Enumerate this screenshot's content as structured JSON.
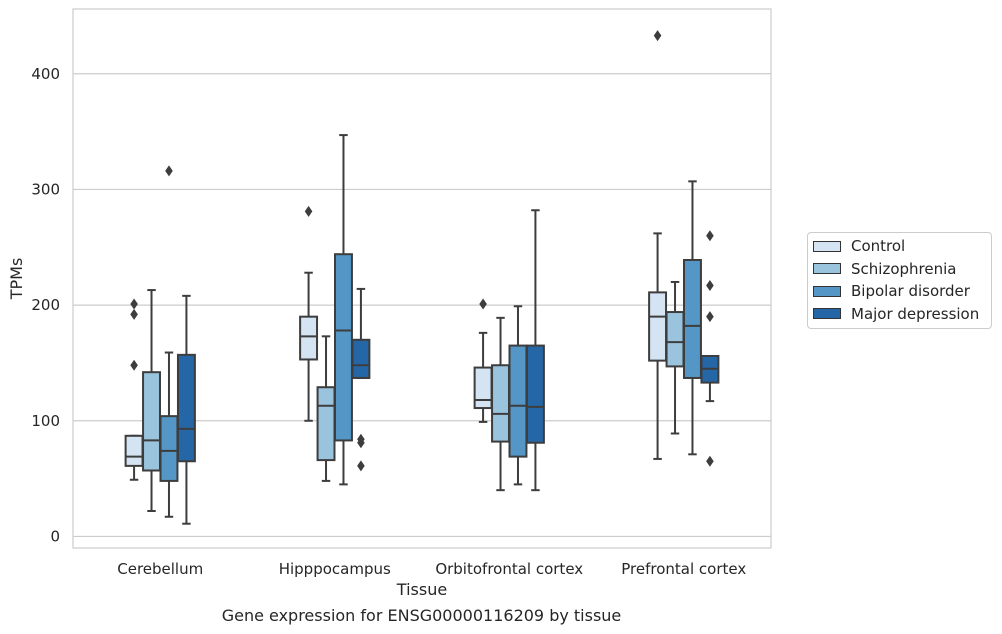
{
  "chart_data": {
    "type": "boxplot",
    "xlabel": "Tissue",
    "ylabel": "TPMs",
    "caption": "Gene expression for ENSG00000116209 by tissue",
    "ylim": [
      -10,
      456
    ],
    "yticks": [
      0,
      100,
      200,
      300,
      400
    ],
    "grid": true,
    "legend_position": "right",
    "categories": [
      "Cerebellum",
      "Hipppocampus",
      "Orbitofrontal cortex",
      "Prefrontal cortex"
    ],
    "series": [
      {
        "name": "Control",
        "color": "#d4e4f3",
        "boxes": [
          {
            "whislo": 49,
            "q1": 61,
            "med": 69,
            "q3": 87,
            "whishi": 87,
            "fliers": [
              148,
              192,
              201
            ]
          },
          {
            "whislo": 100,
            "q1": 153,
            "med": 173,
            "q3": 190,
            "whishi": 228,
            "fliers": [
              281
            ]
          },
          {
            "whislo": 99,
            "q1": 111,
            "med": 118,
            "q3": 146,
            "whishi": 176,
            "fliers": [
              201
            ]
          },
          {
            "whislo": 67,
            "q1": 152,
            "med": 190,
            "q3": 211,
            "whishi": 262,
            "fliers": [
              433
            ]
          }
        ]
      },
      {
        "name": "Schizophrenia",
        "color": "#9ac4de",
        "boxes": [
          {
            "whislo": 22,
            "q1": 57,
            "med": 83,
            "q3": 142,
            "whishi": 213,
            "fliers": []
          },
          {
            "whislo": 48,
            "q1": 66,
            "med": 113,
            "q3": 129,
            "whishi": 173,
            "fliers": []
          },
          {
            "whislo": 40,
            "q1": 82,
            "med": 106,
            "q3": 148,
            "whishi": 189,
            "fliers": []
          },
          {
            "whislo": 89,
            "q1": 147,
            "med": 168,
            "q3": 194,
            "whishi": 220,
            "fliers": []
          }
        ]
      },
      {
        "name": "Bipolar disorder",
        "color": "#5497c6",
        "boxes": [
          {
            "whislo": 17,
            "q1": 48,
            "med": 74,
            "q3": 104,
            "whishi": 159,
            "fliers": [
              316
            ]
          },
          {
            "whislo": 45,
            "q1": 83,
            "med": 178,
            "q3": 244,
            "whishi": 347,
            "fliers": []
          },
          {
            "whislo": 45,
            "q1": 69,
            "med": 113,
            "q3": 165,
            "whishi": 199,
            "fliers": []
          },
          {
            "whislo": 71,
            "q1": 137,
            "med": 182,
            "q3": 239,
            "whishi": 307,
            "fliers": []
          }
        ]
      },
      {
        "name": "Major depression",
        "color": "#2566a7",
        "boxes": [
          {
            "whislo": 11,
            "q1": 65,
            "med": 93,
            "q3": 157,
            "whishi": 208,
            "fliers": []
          },
          {
            "whislo": 137,
            "q1": 137,
            "med": 148,
            "q3": 170,
            "whishi": 214,
            "fliers": [
              61,
              81,
              84
            ]
          },
          {
            "whislo": 40,
            "q1": 81,
            "med": 112,
            "q3": 165,
            "whishi": 282,
            "fliers": []
          },
          {
            "whislo": 117,
            "q1": 133,
            "med": 145,
            "q3": 156,
            "whishi": 156,
            "fliers": [
              65,
              190,
              217,
              260
            ]
          }
        ]
      }
    ]
  }
}
